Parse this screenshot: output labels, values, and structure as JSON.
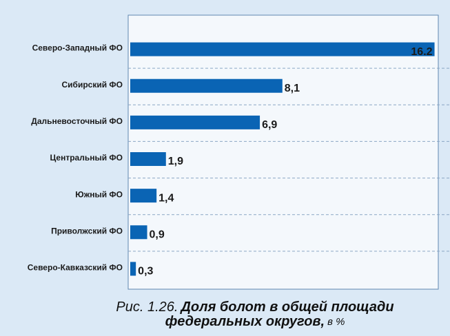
{
  "chart_data": {
    "type": "bar",
    "orientation": "horizontal",
    "title_prefix": "Рис. 1.26.",
    "title_line1": "Доля болот в общей площади",
    "title_line2": "федеральных округов,",
    "title_unit": "в %",
    "categories": [
      "Северо-Западный ФО",
      "Сибирский ФО",
      "Дальневосточный ФО",
      "Центральный ФО",
      "Южный ФО",
      "Приволжский ФО",
      "Северо-Кавказский ФО"
    ],
    "values": [
      16.2,
      8.1,
      6.9,
      1.9,
      1.4,
      0.9,
      0.3
    ],
    "value_labels": [
      "16.2",
      "8,1",
      "6,9",
      "1,9",
      "1,4",
      "0,9",
      "0,3"
    ],
    "color": "#0a64b4",
    "xlim": [
      0,
      16.4
    ],
    "grid": true
  }
}
